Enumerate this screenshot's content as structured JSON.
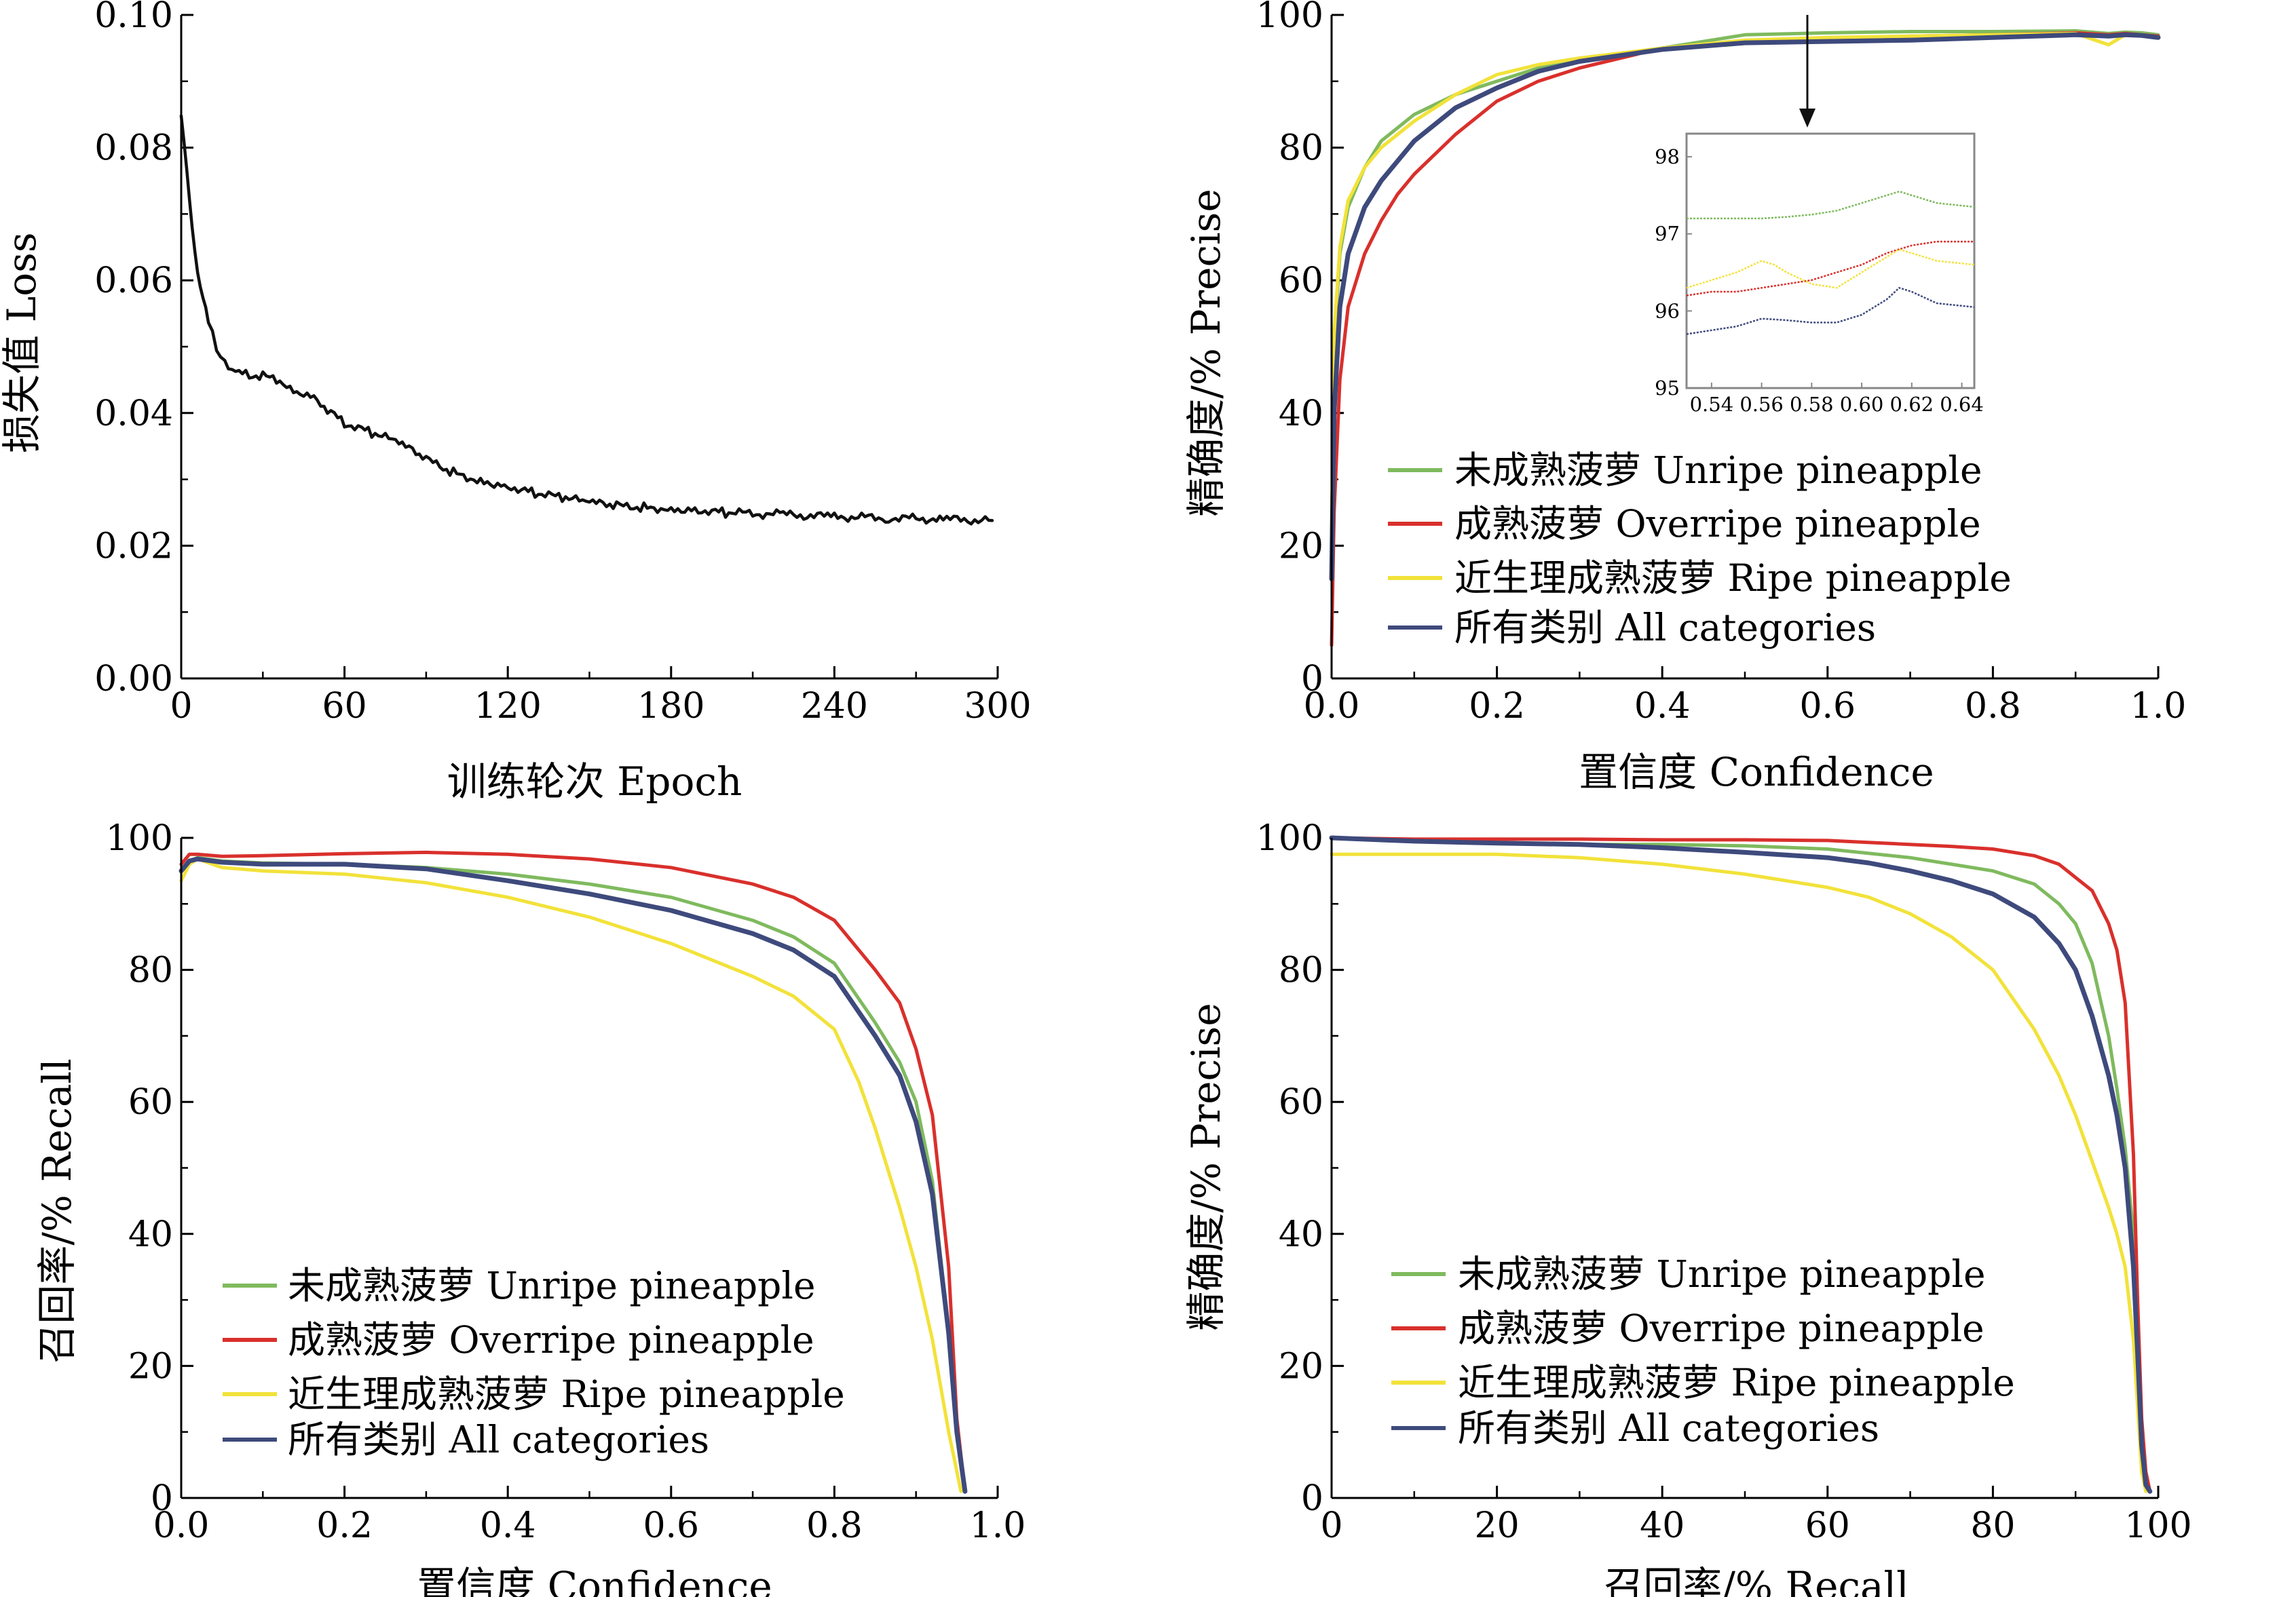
{
  "colors": {
    "unripe": "#7fba5e",
    "overripe": "#d9302c",
    "ripe": "#f2e23a",
    "all": "#3e4a7c",
    "loss": "#111111"
  },
  "chart_data": [
    {
      "id": "loss",
      "type": "line",
      "xlabel": "训练轮次  Epoch",
      "ylabel": "损失值 Loss",
      "xlim": [
        0,
        300
      ],
      "ylim": [
        0,
        0.1
      ],
      "xticks": [
        0,
        60,
        120,
        180,
        240,
        300
      ],
      "xtick_labels": [
        "0",
        "60",
        "120",
        "180",
        "240",
        "300"
      ],
      "yticks": [
        0,
        0.02,
        0.04,
        0.06,
        0.08,
        0.1
      ],
      "ytick_labels": [
        "0.00",
        "0.02",
        "0.04",
        "0.06",
        "0.08",
        "0.10"
      ],
      "grid": false,
      "series": [
        {
          "key": "loss",
          "x": [
            0,
            2,
            4,
            6,
            8,
            10,
            13,
            16,
            20,
            25,
            30,
            35,
            40,
            45,
            50,
            55,
            60,
            70,
            80,
            90,
            100,
            110,
            120,
            130,
            140,
            150,
            160,
            170,
            180,
            190,
            200,
            220,
            240,
            260,
            280,
            298
          ],
          "y": [
            0.085,
            0.077,
            0.068,
            0.061,
            0.057,
            0.054,
            0.05,
            0.0475,
            0.046,
            0.0458,
            0.0455,
            0.0452,
            0.0435,
            0.0428,
            0.042,
            0.04,
            0.0385,
            0.037,
            0.0355,
            0.033,
            0.031,
            0.0298,
            0.029,
            0.028,
            0.0272,
            0.0265,
            0.026,
            0.0258,
            0.0256,
            0.0254,
            0.025,
            0.0247,
            0.0244,
            0.0242,
            0.024,
            0.0238
          ]
        }
      ]
    },
    {
      "id": "precision-confidence",
      "type": "line",
      "xlabel": "置信度  Confidence",
      "ylabel": "精确度/%  Precise",
      "xlim": [
        0,
        1
      ],
      "ylim": [
        0,
        100
      ],
      "xticks": [
        0,
        0.2,
        0.4,
        0.6,
        0.8,
        1.0
      ],
      "xtick_labels": [
        "0.0",
        "0.2",
        "0.4",
        "0.6",
        "0.8",
        "1.0"
      ],
      "yticks": [
        0,
        20,
        40,
        60,
        80,
        100
      ],
      "ytick_labels": [
        "0",
        "20",
        "40",
        "60",
        "80",
        "100"
      ],
      "grid": false,
      "legend": "center-left",
      "series": [
        {
          "key": "unripe",
          "name": "未成熟菠萝 Unripe pineapple",
          "x": [
            0,
            0.003,
            0.01,
            0.02,
            0.04,
            0.06,
            0.08,
            0.1,
            0.15,
            0.2,
            0.25,
            0.3,
            0.4,
            0.5,
            0.6,
            0.7,
            0.8,
            0.9,
            0.94,
            0.96,
            0.98,
            1.0
          ],
          "y": [
            20,
            50,
            64,
            71,
            77,
            81,
            83,
            85,
            88,
            90,
            92,
            93,
            95,
            97,
            97.3,
            97.5,
            97.5,
            97.6,
            97.2,
            97.4,
            97.3,
            97.0
          ]
        },
        {
          "key": "overripe",
          "name": "成熟菠萝 Overripe pineapple",
          "x": [
            0,
            0.003,
            0.01,
            0.02,
            0.04,
            0.06,
            0.08,
            0.1,
            0.15,
            0.2,
            0.25,
            0.3,
            0.4,
            0.5,
            0.6,
            0.7,
            0.8,
            0.9,
            0.94,
            0.96,
            0.98,
            1.0
          ],
          "y": [
            5,
            25,
            45,
            56,
            64,
            69,
            73,
            76,
            82,
            87,
            90,
            92,
            95,
            96,
            96.4,
            96.8,
            97.0,
            97.3,
            97.0,
            97.2,
            97.0,
            96.8
          ]
        },
        {
          "key": "ripe",
          "name": "近生理成熟菠萝 Ripe pineapple",
          "x": [
            0,
            0.003,
            0.01,
            0.02,
            0.04,
            0.06,
            0.08,
            0.1,
            0.15,
            0.2,
            0.25,
            0.3,
            0.4,
            0.5,
            0.6,
            0.7,
            0.8,
            0.9,
            0.94,
            0.96,
            0.98,
            1.0
          ],
          "y": [
            22,
            52,
            65,
            72,
            77,
            80,
            82,
            84,
            88,
            91,
            92.5,
            93.5,
            95,
            96.2,
            96.6,
            96.8,
            97.0,
            97.2,
            95.5,
            97.0,
            97.0,
            96.5
          ]
        },
        {
          "key": "all",
          "name": "所有类别 All categories",
          "x": [
            0,
            0.003,
            0.01,
            0.02,
            0.04,
            0.06,
            0.08,
            0.1,
            0.15,
            0.2,
            0.25,
            0.3,
            0.4,
            0.5,
            0.6,
            0.7,
            0.8,
            0.9,
            0.94,
            0.96,
            0.98,
            1.0
          ],
          "y": [
            15,
            40,
            56,
            64,
            71,
            75,
            78,
            81,
            86,
            89,
            91.5,
            93,
            94.8,
            95.8,
            96.0,
            96.2,
            96.6,
            97.0,
            96.8,
            97.0,
            96.9,
            96.6
          ]
        }
      ],
      "inset": {
        "xlim": [
          0.53,
          0.645
        ],
        "ylim": [
          95,
          98.3
        ],
        "xticks": [
          0.54,
          0.56,
          0.58,
          0.6,
          0.62,
          0.64
        ],
        "xtick_labels": [
          "0.54",
          "0.56",
          "0.58",
          "0.60",
          "0.62",
          "0.64"
        ],
        "yticks": [
          95,
          96,
          97,
          98
        ],
        "ytick_labels": [
          "95",
          "96",
          "97",
          "98"
        ],
        "series": [
          {
            "key": "unripe",
            "x": [
              0.53,
              0.54,
              0.55,
              0.56,
              0.57,
              0.58,
              0.59,
              0.6,
              0.61,
              0.615,
              0.62,
              0.63,
              0.645
            ],
            "y": [
              97.2,
              97.2,
              97.2,
              97.2,
              97.22,
              97.25,
              97.3,
              97.4,
              97.5,
              97.55,
              97.5,
              97.4,
              97.35
            ]
          },
          {
            "key": "overripe",
            "x": [
              0.53,
              0.54,
              0.55,
              0.56,
              0.57,
              0.58,
              0.59,
              0.6,
              0.61,
              0.62,
              0.63,
              0.645
            ],
            "y": [
              96.2,
              96.25,
              96.25,
              96.3,
              96.35,
              96.4,
              96.5,
              96.6,
              96.75,
              96.85,
              96.9,
              96.9
            ]
          },
          {
            "key": "ripe",
            "x": [
              0.53,
              0.54,
              0.55,
              0.56,
              0.565,
              0.57,
              0.58,
              0.59,
              0.6,
              0.61,
              0.615,
              0.62,
              0.63,
              0.645
            ],
            "y": [
              96.3,
              96.4,
              96.5,
              96.65,
              96.6,
              96.5,
              96.35,
              96.3,
              96.5,
              96.7,
              96.8,
              96.75,
              96.65,
              96.6
            ]
          },
          {
            "key": "all",
            "x": [
              0.53,
              0.54,
              0.55,
              0.56,
              0.57,
              0.58,
              0.59,
              0.6,
              0.61,
              0.615,
              0.62,
              0.63,
              0.645
            ],
            "y": [
              95.7,
              95.75,
              95.8,
              95.9,
              95.88,
              95.85,
              95.85,
              95.95,
              96.15,
              96.3,
              96.25,
              96.1,
              96.05
            ]
          }
        ]
      }
    },
    {
      "id": "recall-confidence",
      "type": "line",
      "xlabel": "置信度 Confidence",
      "ylabel": "召回率/%  Recall",
      "xlim": [
        0,
        1
      ],
      "ylim": [
        0,
        100
      ],
      "xticks": [
        0,
        0.2,
        0.4,
        0.6,
        0.8,
        1.0
      ],
      "xtick_labels": [
        "0.0",
        "0.2",
        "0.4",
        "0.6",
        "0.8",
        "1.0"
      ],
      "yticks": [
        0,
        20,
        40,
        60,
        80,
        100
      ],
      "ytick_labels": [
        "0",
        "20",
        "40",
        "60",
        "80",
        "100"
      ],
      "grid": false,
      "legend": "bottom-left",
      "series": [
        {
          "key": "unripe",
          "name": "未成熟菠萝 Unripe pineapple",
          "x": [
            0,
            0.01,
            0.02,
            0.05,
            0.1,
            0.2,
            0.3,
            0.4,
            0.5,
            0.6,
            0.7,
            0.75,
            0.8,
            0.85,
            0.88,
            0.9,
            0.92,
            0.94,
            0.95,
            0.96
          ],
          "y": [
            95,
            96.5,
            97,
            96.5,
            96.2,
            96,
            95.5,
            94.5,
            93,
            91,
            87.5,
            85,
            81,
            72,
            66,
            60,
            48,
            25,
            10,
            1
          ]
        },
        {
          "key": "overripe",
          "name": "成熟菠萝 Overripe pineapple",
          "x": [
            0,
            0.01,
            0.02,
            0.05,
            0.1,
            0.2,
            0.3,
            0.4,
            0.5,
            0.6,
            0.7,
            0.75,
            0.8,
            0.85,
            0.88,
            0.9,
            0.92,
            0.94,
            0.95,
            0.96
          ],
          "y": [
            96,
            97.5,
            97.5,
            97.2,
            97.3,
            97.6,
            97.8,
            97.5,
            96.8,
            95.5,
            93,
            91,
            87.5,
            80,
            75,
            68,
            58,
            35,
            12,
            1
          ]
        },
        {
          "key": "ripe",
          "name": "近生理成熟菠萝 Ripe pineapple",
          "x": [
            0,
            0.01,
            0.02,
            0.05,
            0.1,
            0.2,
            0.3,
            0.4,
            0.5,
            0.6,
            0.7,
            0.75,
            0.8,
            0.83,
            0.85,
            0.88,
            0.9,
            0.92,
            0.94,
            0.955
          ],
          "y": [
            93.5,
            96,
            96.8,
            95.5,
            95,
            94.5,
            93.2,
            91,
            88,
            84,
            79,
            76,
            71,
            63,
            56,
            44,
            35,
            24,
            10,
            1
          ]
        },
        {
          "key": "all",
          "name": "所有类别 All categories",
          "x": [
            0,
            0.01,
            0.02,
            0.05,
            0.1,
            0.2,
            0.3,
            0.4,
            0.5,
            0.6,
            0.7,
            0.75,
            0.8,
            0.85,
            0.88,
            0.9,
            0.92,
            0.94,
            0.95,
            0.96
          ],
          "y": [
            95,
            96.5,
            96.8,
            96.3,
            96,
            96,
            95.3,
            93.5,
            91.5,
            89,
            85.5,
            83,
            79,
            70,
            64,
            57,
            46,
            25,
            10,
            1
          ]
        }
      ]
    },
    {
      "id": "precision-recall",
      "type": "line",
      "xlabel": "召回率/%  Recall",
      "ylabel": "精确度/%  Precise",
      "xlim": [
        0,
        100
      ],
      "ylim": [
        0,
        100
      ],
      "xticks": [
        0,
        20,
        40,
        60,
        80,
        100
      ],
      "xtick_labels": [
        "0",
        "20",
        "40",
        "60",
        "80",
        "100"
      ],
      "yticks": [
        0,
        20,
        40,
        60,
        80,
        100
      ],
      "ytick_labels": [
        "0",
        "20",
        "40",
        "60",
        "80",
        "100"
      ],
      "grid": false,
      "legend": "bottom-left",
      "series": [
        {
          "key": "unripe",
          "name": "未成熟菠萝 Unripe pineapple",
          "x": [
            0,
            10,
            20,
            30,
            40,
            50,
            60,
            70,
            75,
            80,
            85,
            88,
            90,
            92,
            94,
            95,
            96,
            97,
            97.5,
            98,
            98.5,
            99
          ],
          "y": [
            100,
            99.5,
            99.3,
            99,
            99,
            98.8,
            98.3,
            97,
            96,
            95,
            93,
            90,
            87,
            81,
            70,
            62,
            53,
            40,
            25,
            10,
            3,
            1
          ]
        },
        {
          "key": "overripe",
          "name": "成熟菠萝 Overripe pineapple",
          "x": [
            0,
            10,
            20,
            30,
            40,
            50,
            60,
            70,
            75,
            80,
            85,
            88,
            90,
            92,
            94,
            95,
            96,
            97,
            97.5,
            98,
            98.5,
            99
          ],
          "y": [
            100,
            99.8,
            99.8,
            99.8,
            99.7,
            99.7,
            99.6,
            99,
            98.7,
            98.3,
            97.3,
            96,
            94,
            92,
            87,
            83,
            75,
            52,
            30,
            12,
            4,
            1
          ]
        },
        {
          "key": "ripe",
          "name": "近生理成熟菠萝 Ripe pineapple",
          "x": [
            0,
            10,
            20,
            30,
            40,
            50,
            60,
            65,
            70,
            75,
            80,
            85,
            88,
            90,
            92,
            94,
            95,
            96,
            97,
            97.5,
            98,
            98.5
          ],
          "y": [
            97.5,
            97.5,
            97.5,
            97,
            96,
            94.5,
            92.5,
            91,
            88.5,
            85,
            80,
            71,
            64,
            58,
            51,
            44,
            40,
            35,
            24,
            14,
            4,
            1
          ]
        },
        {
          "key": "all",
          "name": "所有类别 All categories",
          "x": [
            0,
            10,
            20,
            30,
            40,
            50,
            60,
            65,
            70,
            75,
            80,
            85,
            88,
            90,
            92,
            94,
            95,
            96,
            97,
            97.5,
            98,
            98.5,
            99
          ],
          "y": [
            100,
            99.5,
            99.2,
            99,
            98.5,
            97.8,
            97,
            96.2,
            95,
            93.5,
            91.5,
            88,
            84,
            80,
            73,
            64,
            58,
            50,
            35,
            22,
            8,
            2,
            1
          ]
        }
      ]
    }
  ]
}
